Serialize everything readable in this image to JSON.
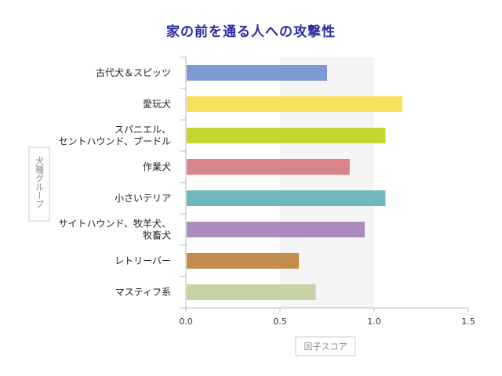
{
  "chart_data": {
    "type": "bar",
    "orientation": "horizontal",
    "title": "家の前を通る人への攻撃性",
    "xlabel": "因子スコア",
    "ylabel": "犬種グループ",
    "xlim": [
      0,
      1.5
    ],
    "xticks": [
      "0.0",
      "0.5",
      "1.0",
      "1.5"
    ],
    "highlight_band": [
      0.5,
      1.0
    ],
    "grid": false,
    "categories": [
      [
        "古代犬＆スピッツ"
      ],
      [
        "愛玩犬"
      ],
      [
        "スパニエル、",
        "セントハウンド、プードル"
      ],
      [
        "作業犬"
      ],
      [
        "小さいテリア"
      ],
      [
        "サイトハウンド、牧羊犬、",
        "牧畜犬"
      ],
      [
        "レトリーバー"
      ],
      [
        "マスティフ系"
      ]
    ],
    "values": [
      0.75,
      1.15,
      1.06,
      0.87,
      1.06,
      0.95,
      0.6,
      0.69
    ],
    "colors": [
      "#7b9bd2",
      "#f7e35a",
      "#c6d52f",
      "#d9848a",
      "#6fb9bd",
      "#ac8cc0",
      "#c28c4a",
      "#c6d1a6"
    ]
  }
}
